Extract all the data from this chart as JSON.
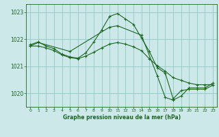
{
  "title": "Graphe pression niveau de la mer (hPa)",
  "bg_color": "#cce8e8",
  "grid_color": "#99cccc",
  "line_color": "#1a6620",
  "text_color": "#1a6620",
  "xlim": [
    -0.5,
    23.5
  ],
  "ylim": [
    1019.5,
    1023.3
  ],
  "yticks": [
    1020,
    1021,
    1022,
    1023
  ],
  "xticks": [
    0,
    1,
    2,
    3,
    4,
    5,
    6,
    7,
    8,
    9,
    10,
    11,
    12,
    13,
    14,
    15,
    16,
    17,
    18,
    19,
    20,
    21,
    22,
    23
  ],
  "series": [
    {
      "x": [
        0,
        1,
        2,
        3,
        4,
        5,
        6,
        7,
        8,
        9,
        10,
        11,
        12,
        13,
        14,
        15,
        16,
        17,
        18,
        19,
        20,
        21,
        22,
        23
      ],
      "y": [
        1021.8,
        1021.9,
        1021.75,
        1021.65,
        1021.45,
        1021.35,
        1021.3,
        1021.5,
        1021.9,
        1022.35,
        1022.85,
        1022.95,
        1022.75,
        1022.55,
        1022.05,
        1021.55,
        1020.95,
        1020.75,
        1019.8,
        1020.1,
        1020.15,
        1020.15,
        1020.15,
        1020.3
      ]
    },
    {
      "x": [
        0,
        1,
        2,
        3,
        4,
        5,
        6,
        7,
        8,
        9,
        10,
        11,
        12,
        13,
        14,
        15,
        16,
        17,
        18,
        19,
        20,
        21,
        22,
        23
      ],
      "y": [
        1021.75,
        1021.75,
        1021.68,
        1021.58,
        1021.42,
        1021.32,
        1021.28,
        1021.38,
        1021.52,
        1021.68,
        1021.82,
        1021.88,
        1021.82,
        1021.72,
        1021.58,
        1021.28,
        1021.02,
        1020.82,
        1020.58,
        1020.48,
        1020.38,
        1020.32,
        1020.32,
        1020.32
      ]
    },
    {
      "x": [
        0,
        1,
        5,
        10,
        11,
        14,
        16,
        17,
        18,
        19,
        20,
        21,
        22,
        23
      ],
      "y": [
        1021.75,
        1021.88,
        1021.55,
        1022.45,
        1022.5,
        1022.15,
        1020.65,
        1019.85,
        1019.75,
        1019.9,
        1020.2,
        1020.2,
        1020.2,
        1020.38
      ]
    }
  ]
}
